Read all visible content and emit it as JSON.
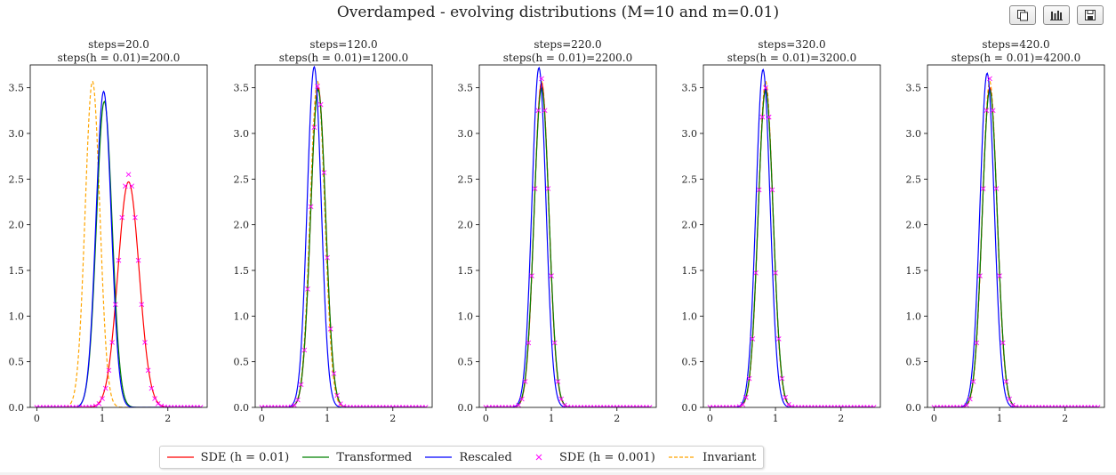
{
  "figure": {
    "title": "Overdamped - evolving distributions (M=10 and m=0.01)"
  },
  "toolbar": {
    "buttons": [
      {
        "icon": "copy-icon"
      },
      {
        "icon": "bar-chart-icon"
      },
      {
        "icon": "save-icon"
      }
    ]
  },
  "legend": {
    "items": [
      {
        "label": "SDE (h = 0.01)",
        "color": "#ff0000",
        "style": "line"
      },
      {
        "label": "Transformed",
        "color": "#008000",
        "style": "line"
      },
      {
        "label": "Rescaled",
        "color": "#0000ff",
        "style": "line"
      },
      {
        "label": "SDE (h = 0.001)",
        "color": "#ff00ff",
        "style": "marker-x"
      },
      {
        "label": "Invariant",
        "color": "#ffa500",
        "style": "dashed"
      }
    ]
  },
  "chart_data": [
    {
      "type": "line",
      "title": "steps=20.0",
      "subtitle": "steps(h = 0.01)=200.0",
      "xlim": [
        -0.1,
        2.6
      ],
      "ylim": [
        0,
        3.75
      ],
      "xticks": [
        0,
        1,
        2
      ],
      "yticks": [
        0.0,
        0.5,
        1.0,
        1.5,
        2.0,
        2.5,
        3.0,
        3.5
      ],
      "series": [
        {
          "name": "SDE (h = 0.01)",
          "peak_x": 1.4,
          "peak_y": 2.47
        },
        {
          "name": "Transformed",
          "peak_x": 1.03,
          "peak_y": 3.35
        },
        {
          "name": "Rescaled",
          "peak_x": 1.02,
          "peak_y": 3.46
        },
        {
          "name": "SDE (h = 0.001)",
          "peak_x": 1.4,
          "peak_y": 2.55
        },
        {
          "name": "Invariant",
          "peak_x": 0.85,
          "peak_y": 3.57
        }
      ]
    },
    {
      "type": "line",
      "title": "steps=120.0",
      "subtitle": "steps(h = 0.01)=1200.0",
      "xlim": [
        -0.1,
        2.6
      ],
      "ylim": [
        0,
        3.75
      ],
      "xticks": [
        0,
        1,
        2
      ],
      "yticks": [
        0.0,
        0.5,
        1.0,
        1.5,
        2.0,
        2.5,
        3.0,
        3.5
      ],
      "series": [
        {
          "name": "SDE (h = 0.01)",
          "peak_x": 0.86,
          "peak_y": 3.5
        },
        {
          "name": "Transformed",
          "peak_x": 0.86,
          "peak_y": 3.48
        },
        {
          "name": "Rescaled",
          "peak_x": 0.8,
          "peak_y": 3.73
        },
        {
          "name": "SDE (h = 0.001)",
          "peak_x": 0.86,
          "peak_y": 3.53
        },
        {
          "name": "Invariant",
          "peak_x": 0.85,
          "peak_y": 3.57
        }
      ]
    },
    {
      "type": "line",
      "title": "steps=220.0",
      "subtitle": "steps(h = 0.01)=2200.0",
      "xlim": [
        -0.1,
        2.6
      ],
      "ylim": [
        0,
        3.75
      ],
      "xticks": [
        0,
        1,
        2
      ],
      "yticks": [
        0.0,
        0.5,
        1.0,
        1.5,
        2.0,
        2.5,
        3.0,
        3.5
      ],
      "series": [
        {
          "name": "SDE (h = 0.01)",
          "peak_x": 0.85,
          "peak_y": 3.55
        },
        {
          "name": "Transformed",
          "peak_x": 0.85,
          "peak_y": 3.5
        },
        {
          "name": "Rescaled",
          "peak_x": 0.81,
          "peak_y": 3.72
        },
        {
          "name": "SDE (h = 0.001)",
          "peak_x": 0.85,
          "peak_y": 3.6
        },
        {
          "name": "Invariant",
          "peak_x": 0.85,
          "peak_y": 3.57
        }
      ]
    },
    {
      "type": "line",
      "title": "steps=320.0",
      "subtitle": "steps(h = 0.01)=3200.0",
      "xlim": [
        -0.1,
        2.6
      ],
      "ylim": [
        0,
        3.75
      ],
      "xticks": [
        0,
        1,
        2
      ],
      "yticks": [
        0.0,
        0.5,
        1.0,
        1.5,
        2.0,
        2.5,
        3.0,
        3.5
      ],
      "series": [
        {
          "name": "SDE (h = 0.01)",
          "peak_x": 0.85,
          "peak_y": 3.5
        },
        {
          "name": "Transformed",
          "peak_x": 0.85,
          "peak_y": 3.48
        },
        {
          "name": "Rescaled",
          "peak_x": 0.81,
          "peak_y": 3.7
        },
        {
          "name": "SDE (h = 0.001)",
          "peak_x": 0.85,
          "peak_y": 3.5
        },
        {
          "name": "Invariant",
          "peak_x": 0.85,
          "peak_y": 3.57
        }
      ]
    },
    {
      "type": "line",
      "title": "steps=420.0",
      "subtitle": "steps(h = 0.01)=4200.0",
      "xlim": [
        -0.1,
        2.6
      ],
      "ylim": [
        0,
        3.75
      ],
      "xticks": [
        0,
        1,
        2
      ],
      "yticks": [
        0.0,
        0.5,
        1.0,
        1.5,
        2.0,
        2.5,
        3.0,
        3.5
      ],
      "series": [
        {
          "name": "SDE (h = 0.01)",
          "peak_x": 0.85,
          "peak_y": 3.5
        },
        {
          "name": "Transformed",
          "peak_x": 0.85,
          "peak_y": 3.48
        },
        {
          "name": "Rescaled",
          "peak_x": 0.81,
          "peak_y": 3.66
        },
        {
          "name": "SDE (h = 0.001)",
          "peak_x": 0.85,
          "peak_y": 3.6
        },
        {
          "name": "Invariant",
          "peak_x": 0.85,
          "peak_y": 3.57
        }
      ]
    }
  ]
}
